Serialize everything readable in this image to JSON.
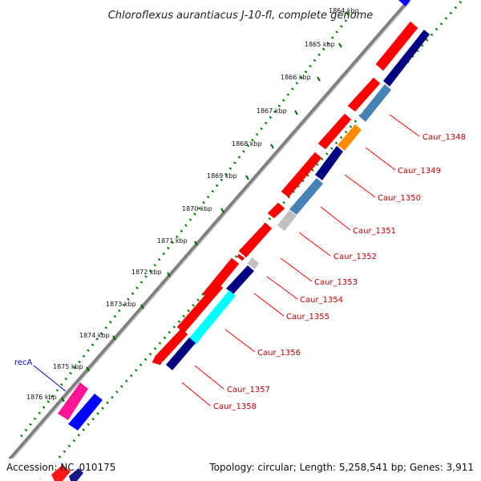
{
  "title": "Chloroflexus aurantiacus J-10-fl, complete genome",
  "accession": "Accession: NC_010175",
  "summary": "Topology: circular; Length: 5,258,541 bp; Genes: 3,911",
  "scale_labels": [
    "1864 kbp",
    "1865 kbp",
    "1866 kbp",
    "1867 kbp",
    "1868 kbp",
    "1869 kbp",
    "1870 kbp",
    "1871 kbp",
    "1872 kbp",
    "1873 kbp",
    "1874 kbp",
    "1875 kbp",
    "1876 kbp"
  ],
  "gene_labels": [
    "Caur_1348",
    "Caur_1349",
    "Caur_1350",
    "Caur_1351",
    "Caur_1352",
    "Caur_1353",
    "Caur_1354",
    "Caur_1355",
    "Caur_1356",
    "Caur_1357",
    "Caur_1358"
  ],
  "other_labels": [
    "recA"
  ],
  "colors": {
    "forward_cds": "#ff0000",
    "reverse_cds": "#000080",
    "steelblue_cds": "#4682b4",
    "orange_cds": "#ff8c00",
    "grey_cds": "#c0c0c0",
    "cyan_cds": "#00ffff",
    "reca_forward": "#ff1493",
    "reca_reverse": "#0000ff",
    "backbone": "#808080",
    "ticks": "#008000",
    "label_line": "#ff0000"
  }
}
